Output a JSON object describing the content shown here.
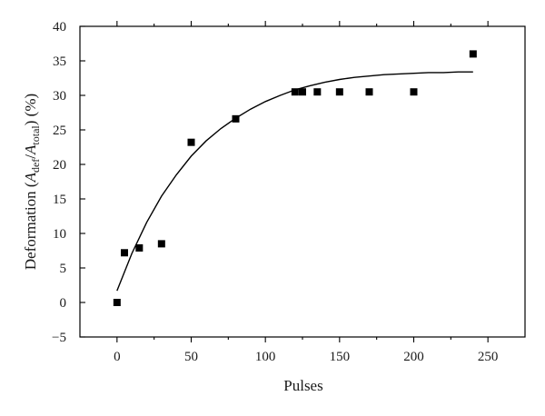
{
  "chart_data": {
    "type": "scatter",
    "title": "",
    "xlabel": "Pulses",
    "ylabel": {
      "prefix": "Deformation (",
      "a1": "A",
      "sub1": "def",
      "slash": "/",
      "a2": "A",
      "sub2": "total",
      "suffix": ") (%)"
    },
    "xlim": [
      -25,
      275
    ],
    "ylim": [
      -5,
      40
    ],
    "xticks": [
      0,
      50,
      100,
      150,
      200,
      250
    ],
    "yticks": [
      -5,
      0,
      5,
      10,
      15,
      20,
      25,
      30,
      35,
      40
    ],
    "series": [
      {
        "kind": "points",
        "marker": "square",
        "x": [
          0,
          5,
          15,
          30,
          50,
          80,
          120,
          125,
          135,
          150,
          170,
          200,
          240
        ],
        "y": [
          0,
          7.2,
          7.9,
          8.5,
          23.2,
          26.6,
          30.5,
          30.5,
          30.5,
          30.5,
          30.5,
          30.5,
          36
        ]
      },
      {
        "kind": "fit",
        "x": [
          0,
          10,
          20,
          30,
          40,
          50,
          60,
          70,
          80,
          90,
          100,
          110,
          120,
          130,
          140,
          150,
          160,
          170,
          180,
          190,
          200,
          210,
          220,
          230,
          240
        ],
        "y": [
          1.7,
          7.1,
          11.6,
          15.4,
          18.5,
          21.2,
          23.4,
          25.2,
          26.7,
          28.0,
          29.1,
          30.0,
          30.8,
          31.4,
          31.9,
          32.3,
          32.6,
          32.8,
          33.0,
          33.1,
          33.2,
          33.3,
          33.3,
          33.4,
          33.4
        ]
      }
    ],
    "grid": false,
    "legend": "none"
  }
}
